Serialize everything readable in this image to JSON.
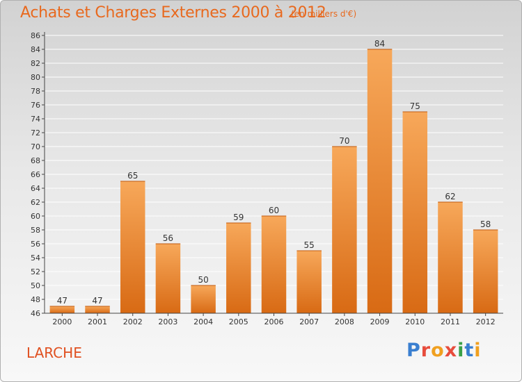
{
  "header": {
    "title": "Achats et Charges Externes 2000 à 2012",
    "subtitle": "(en milliers d'€)"
  },
  "commune": "LARCHE",
  "logo": {
    "text": "Proxiti",
    "letters": [
      {
        "ch": "P",
        "color": "#3a7fd0"
      },
      {
        "ch": "r",
        "color": "#e74c3c"
      },
      {
        "ch": "o",
        "color": "#f0a020"
      },
      {
        "ch": "x",
        "color": "#e74c3c"
      },
      {
        "ch": "i",
        "color": "#3aa048"
      },
      {
        "ch": "t",
        "color": "#3a7fd0"
      },
      {
        "ch": "i",
        "color": "#f0a020"
      }
    ]
  },
  "colors": {
    "bar_top": "#f7a85a",
    "bar_bottom": "#d86a14",
    "title": "#e8691e",
    "grid": "#ffffff",
    "axis": "#444444"
  },
  "chart_data": {
    "type": "bar",
    "categories": [
      "2000",
      "2001",
      "2002",
      "2003",
      "2004",
      "2005",
      "2006",
      "2007",
      "2008",
      "2009",
      "2010",
      "2011",
      "2012"
    ],
    "values": [
      47,
      47,
      65,
      56,
      50,
      59,
      60,
      55,
      70,
      84,
      75,
      62,
      58
    ],
    "ylim": [
      46,
      86
    ],
    "ytick_step": 2,
    "grid": true,
    "data_labels": true
  }
}
